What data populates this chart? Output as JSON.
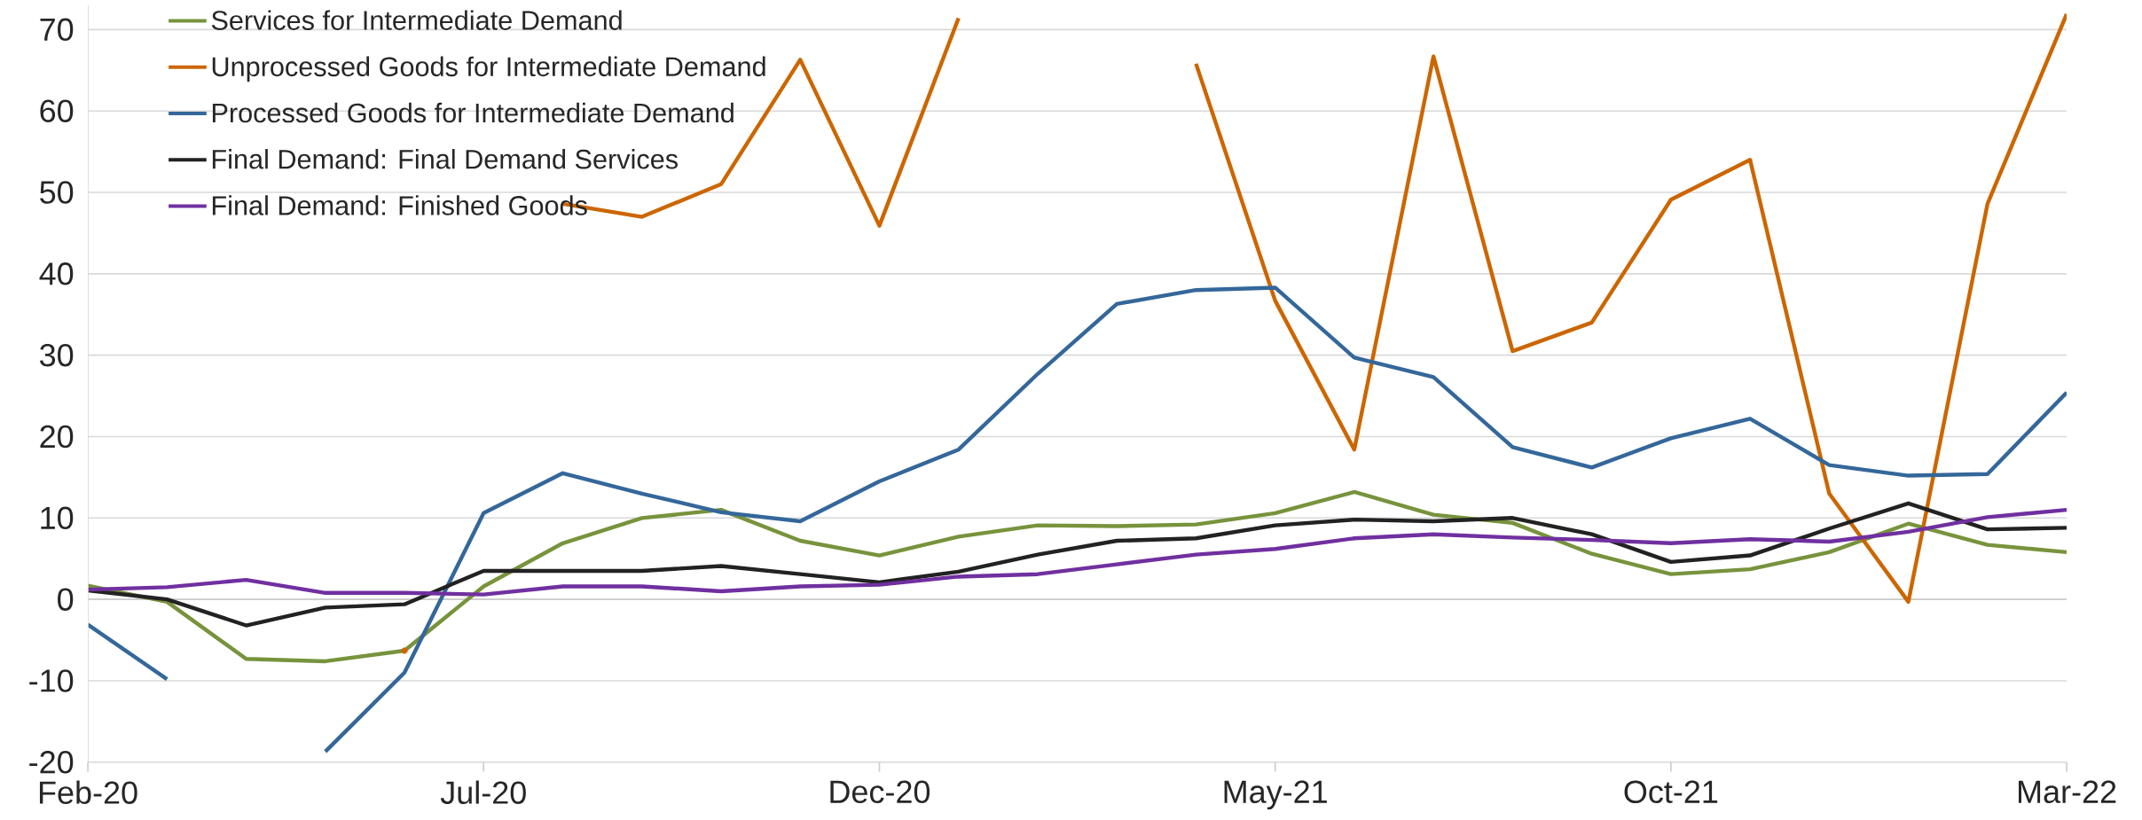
{
  "chart_data": {
    "type": "line",
    "categories": [
      "Feb-20",
      null,
      null,
      null,
      null,
      "Jul-20",
      null,
      null,
      null,
      null,
      "Dec-20",
      null,
      null,
      null,
      null,
      "May-21",
      null,
      null,
      null,
      null,
      "Oct-21",
      null,
      null,
      null,
      null,
      "Mar-22"
    ],
    "series": [
      {
        "name": "Services for Intermediate Demand",
        "color": "#77933c",
        "values": [
          1.7,
          -0.3,
          -7.3,
          -7.6,
          -6.3,
          1.6,
          6.9,
          10.0,
          11.0,
          7.2,
          5.4,
          7.7,
          9.1,
          9.0,
          9.2,
          10.6,
          13.2,
          10.4,
          9.4,
          5.6,
          3.1,
          3.7,
          5.8,
          9.3,
          6.7,
          5.8
        ]
      },
      {
        "name": "Unprocessed Goods for Intermediate Demand",
        "color": "#cc6600",
        "values": [
          null,
          null,
          null,
          null,
          -6.3,
          null,
          48.6,
          47.0,
          51.0,
          66.3,
          45.9,
          71.4,
          null,
          null,
          65.8,
          36.7,
          18.4,
          66.7,
          30.5,
          34.0,
          49.1,
          54.0,
          13.0,
          -0.3,
          48.6,
          71.9
        ]
      },
      {
        "name": "Processed Goods for Intermediate Demand",
        "color": "#34679a",
        "values": [
          -3.1,
          -9.8,
          null,
          -18.7,
          -9.0,
          10.6,
          15.5,
          13.0,
          10.7,
          9.6,
          14.5,
          18.4,
          27.7,
          36.3,
          38.0,
          38.3,
          29.7,
          27.3,
          18.7,
          16.2,
          19.8,
          22.2,
          16.5,
          15.2,
          15.4,
          25.4
        ]
      },
      {
        "name": "Final Demand: Final Demand Services",
        "color": "#222222",
        "values": [
          1.1,
          0.0,
          -3.2,
          -1.0,
          -0.6,
          3.5,
          3.5,
          3.5,
          4.1,
          3.1,
          2.1,
          3.4,
          5.5,
          7.2,
          7.5,
          9.1,
          9.8,
          9.6,
          10.0,
          8.0,
          4.6,
          5.4,
          8.7,
          11.8,
          8.6,
          8.8
        ]
      },
      {
        "name": "Final Demand: Finished Goods",
        "color": "#7030a0",
        "values": [
          1.2,
          1.5,
          2.4,
          0.8,
          0.8,
          0.6,
          1.6,
          1.6,
          1.0,
          1.6,
          1.8,
          2.8,
          3.1,
          4.3,
          5.5,
          6.2,
          7.5,
          8.0,
          7.6,
          7.3,
          6.9,
          7.4,
          7.1,
          8.3,
          10.1,
          11.0
        ]
      }
    ],
    "ylim": [
      -20,
      73
    ],
    "yticks": [
      -20,
      -10,
      0,
      10,
      20,
      30,
      40,
      50,
      60,
      70
    ],
    "grid": "y",
    "legend": "top left"
  }
}
